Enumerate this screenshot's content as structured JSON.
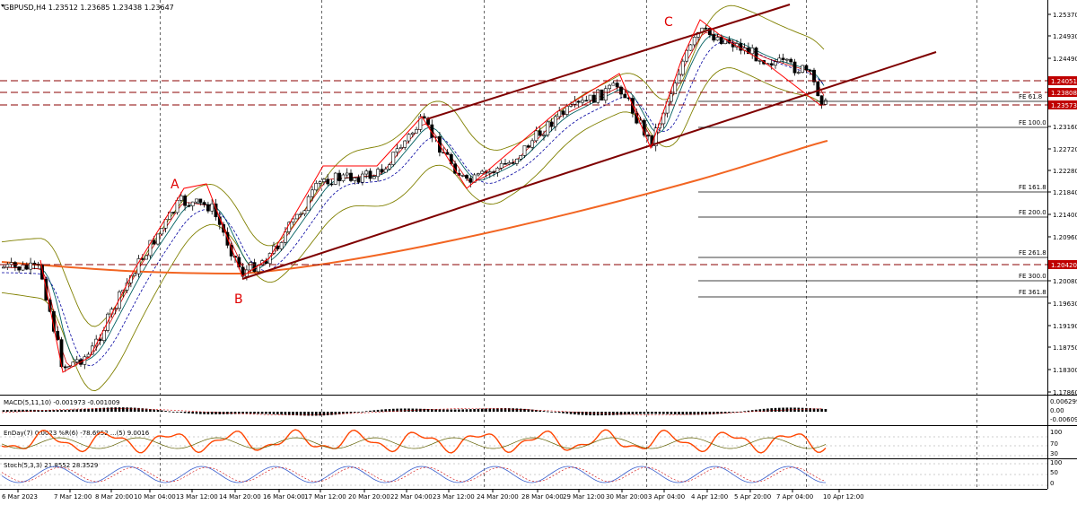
{
  "header": {
    "symbol_line": "GBPUSD,H4  1.23512 1.23685 1.23438 1.23647"
  },
  "colors": {
    "background": "#ffffff",
    "grid": "#000000",
    "bull": "#ffffff",
    "bear": "#000000",
    "ma_long": "#f26522",
    "channel": "#7f0000",
    "level_line": "#8b0000",
    "zigzag": "#ff0000",
    "bollinger": "#808000",
    "price_box": "#c00000"
  },
  "annotations": {
    "A": "A",
    "B": "B",
    "C": "C"
  },
  "price_axis": {
    "ticks": [
      "1.25370",
      "1.24930",
      "1.24490",
      "1.24051",
      "1.23808",
      "1.23573",
      "1.23160",
      "1.22720",
      "1.22280",
      "1.21840",
      "1.21400",
      "1.20960",
      "1.20420",
      "1.20080",
      "1.19630",
      "1.19190",
      "1.18750",
      "1.18300",
      "1.17860"
    ]
  },
  "price_boxes": [
    "1.24051",
    "1.23808",
    "1.23573",
    "1.20420"
  ],
  "fib_levels": [
    {
      "label": "FE 61.8"
    },
    {
      "label": "FE 100.0"
    },
    {
      "label": "FE 161.8"
    },
    {
      "label": "FE 200.0"
    },
    {
      "label": "FE 261.8"
    },
    {
      "label": "FE 300.0"
    },
    {
      "label": "FE 361.8"
    }
  ],
  "time_axis": {
    "labels": [
      "6 Mar 2023",
      "7 Mar 12:00",
      "8 Mar 20:00",
      "10 Mar 04:00",
      "13 Mar 12:00",
      "14 Mar 20:00",
      "16 Mar 04:00",
      "17 Mar 12:00",
      "20 Mar 20:00",
      "22 Mar 04:00",
      "23 Mar 12:00",
      "24 Mar 20:00",
      "28 Mar 04:00",
      "29 Mar 12:00",
      "30 Mar 20:00",
      "3 Apr 04:00",
      "4 Apr 12:00",
      "5 Apr 20:00",
      "7 Apr 04:00",
      "10 Apr 12:00"
    ]
  },
  "indicators": {
    "macd": {
      "label": "MACD(5,11,10) -0.001973 -0.001009",
      "ticks": [
        "0.006299",
        "0.00",
        "-0.006091"
      ]
    },
    "rsi": {
      "label": "EnDay(7) 0.0023 %R(6) -78.6952 ...(5) 9.0016",
      "ticks": [
        "100",
        "70",
        "30"
      ]
    },
    "stoch": {
      "label": "Stoch(5,3,3) 21.8552 28.3529",
      "ticks": [
        "100",
        "50",
        "0"
      ]
    }
  }
}
